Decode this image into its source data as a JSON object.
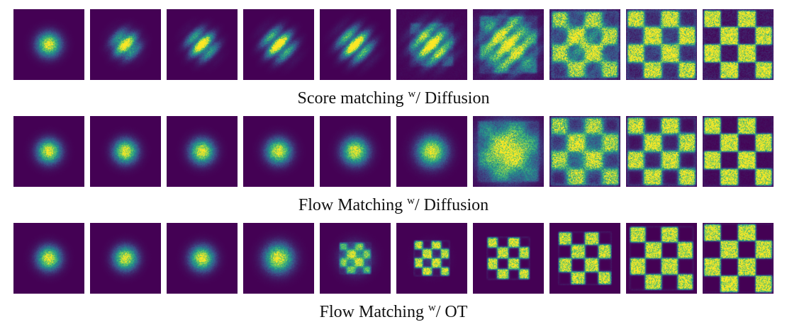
{
  "figure": {
    "background": "#ffffff",
    "panel_background": "#440154",
    "stripe_frequency": 6,
    "colormap": {
      "name": "viridis",
      "stops": [
        {
          "t": 0.0,
          "color": "#440154"
        },
        {
          "t": 0.25,
          "color": "#3b528b"
        },
        {
          "t": 0.5,
          "color": "#21918c"
        },
        {
          "t": 0.75,
          "color": "#5ec962"
        },
        {
          "t": 1.0,
          "color": "#fde725"
        }
      ]
    },
    "rows": [
      {
        "id": "score-matching-diffusion",
        "caption": {
          "prefix": "Score matching ",
          "sup": "w",
          "suffix": "/ Diffusion"
        },
        "panels": [
          {
            "blob": 1,
            "sigma": 0.42,
            "stripe": 0,
            "checker": 0,
            "extent": 2,
            "soft": 0.3,
            "noise": 0.25,
            "floor": 0,
            "seed": 101
          },
          {
            "blob": 1,
            "sigma": 0.45,
            "stripe": 0.3,
            "checker": 0,
            "extent": 2,
            "soft": 0.3,
            "noise": 0.3,
            "floor": 0,
            "seed": 102
          },
          {
            "blob": 1,
            "sigma": 0.47,
            "stripe": 0.5,
            "checker": 0,
            "extent": 2,
            "soft": 0.3,
            "noise": 0.3,
            "floor": 0,
            "seed": 103
          },
          {
            "blob": 1,
            "sigma": 0.5,
            "stripe": 0.55,
            "checker": 0,
            "extent": 2,
            "soft": 0.3,
            "noise": 0.32,
            "floor": 0,
            "seed": 104
          },
          {
            "blob": 1,
            "sigma": 0.53,
            "stripe": 0.6,
            "checker": 0,
            "extent": 2,
            "soft": 0.3,
            "noise": 0.32,
            "floor": 0,
            "seed": 105
          },
          {
            "blob": 0.95,
            "sigma": 0.62,
            "stripe": 0.6,
            "checker": 0.18,
            "extent": 1.3,
            "soft": 0.7,
            "noise": 0.35,
            "floor": 0.02,
            "seed": 106
          },
          {
            "blob": 0.8,
            "sigma": 0.85,
            "stripe": 0.5,
            "checker": 0.35,
            "extent": 1.7,
            "soft": 0.6,
            "noise": 0.4,
            "floor": 0.05,
            "seed": 107
          },
          {
            "blob": 0.35,
            "sigma": 1.05,
            "stripe": 0.35,
            "checker": 0.75,
            "extent": 1.95,
            "soft": 0.45,
            "noise": 0.5,
            "floor": 0.12,
            "seed": 108
          },
          {
            "blob": 0.12,
            "sigma": 1.15,
            "stripe": 0.2,
            "checker": 0.92,
            "extent": 2,
            "soft": 0.3,
            "noise": 0.5,
            "floor": 0.12,
            "seed": 109
          },
          {
            "blob": 0,
            "sigma": 1,
            "stripe": 0,
            "checker": 0.95,
            "extent": 2,
            "soft": 0.16,
            "noise": 0.45,
            "floor": 0.1,
            "seed": 110
          }
        ]
      },
      {
        "id": "flow-matching-diffusion",
        "caption": {
          "prefix": "Flow Matching ",
          "sup": "w",
          "suffix": "/ Diffusion"
        },
        "panels": [
          {
            "blob": 1,
            "sigma": 0.42,
            "stripe": 0,
            "checker": 0,
            "extent": 2,
            "soft": 0.3,
            "noise": 0.25,
            "floor": 0,
            "seed": 201
          },
          {
            "blob": 1,
            "sigma": 0.42,
            "stripe": 0,
            "checker": 0,
            "extent": 2,
            "soft": 0.3,
            "noise": 0.25,
            "floor": 0,
            "seed": 202
          },
          {
            "blob": 1,
            "sigma": 0.43,
            "stripe": 0,
            "checker": 0,
            "extent": 2,
            "soft": 0.3,
            "noise": 0.25,
            "floor": 0,
            "seed": 203
          },
          {
            "blob": 1,
            "sigma": 0.44,
            "stripe": 0,
            "checker": 0,
            "extent": 2,
            "soft": 0.3,
            "noise": 0.25,
            "floor": 0,
            "seed": 204
          },
          {
            "blob": 1,
            "sigma": 0.46,
            "stripe": 0,
            "checker": 0,
            "extent": 2,
            "soft": 0.3,
            "noise": 0.26,
            "floor": 0,
            "seed": 205
          },
          {
            "blob": 1,
            "sigma": 0.52,
            "stripe": 0,
            "checker": 0,
            "extent": 2,
            "soft": 0.3,
            "noise": 0.28,
            "floor": 0,
            "seed": 206
          },
          {
            "blob": 0.9,
            "sigma": 0.95,
            "stripe": 0,
            "checker": 0.3,
            "extent": 1.8,
            "soft": 0.8,
            "noise": 0.4,
            "floor": 0.03,
            "seed": 207
          },
          {
            "blob": 0.3,
            "sigma": 1.05,
            "stripe": 0,
            "checker": 0.8,
            "extent": 2,
            "soft": 0.5,
            "noise": 0.45,
            "floor": 0.05,
            "seed": 208
          },
          {
            "blob": 0.08,
            "sigma": 1,
            "stripe": 0,
            "checker": 0.95,
            "extent": 2,
            "soft": 0.32,
            "noise": 0.45,
            "floor": 0.03,
            "seed": 209
          },
          {
            "blob": 0,
            "sigma": 1,
            "stripe": 0,
            "checker": 0.95,
            "extent": 2,
            "soft": 0.16,
            "noise": 0.4,
            "floor": 0.04,
            "seed": 210
          }
        ]
      },
      {
        "id": "flow-matching-ot",
        "caption": {
          "prefix": "Flow Matching ",
          "sup": "w",
          "suffix": "/ OT"
        },
        "panels": [
          {
            "blob": 1,
            "sigma": 0.42,
            "stripe": 0,
            "checker": 0,
            "extent": 2,
            "soft": 0.3,
            "noise": 0.25,
            "floor": 0,
            "seed": 301
          },
          {
            "blob": 1,
            "sigma": 0.42,
            "stripe": 0,
            "checker": 0,
            "extent": 2,
            "soft": 0.3,
            "noise": 0.25,
            "floor": 0,
            "seed": 302
          },
          {
            "blob": 1,
            "sigma": 0.43,
            "stripe": 0,
            "checker": 0,
            "extent": 2,
            "soft": 0.3,
            "noise": 0.25,
            "floor": 0,
            "seed": 303
          },
          {
            "blob": 1,
            "sigma": 0.5,
            "stripe": 0,
            "checker": 0,
            "extent": 2,
            "soft": 0.3,
            "noise": 0.27,
            "floor": 0,
            "seed": 304
          },
          {
            "blob": 0.55,
            "sigma": 0.5,
            "stripe": 0,
            "checker": 0.6,
            "extent": 0.95,
            "soft": 0.5,
            "noise": 0.3,
            "floor": 0,
            "seed": 305
          },
          {
            "blob": 0.12,
            "sigma": 0.5,
            "stripe": 0,
            "checker": 0.95,
            "extent": 1.05,
            "soft": 0.33,
            "noise": 0.35,
            "floor": 0,
            "seed": 306
          },
          {
            "blob": 0,
            "sigma": 1,
            "stripe": 0,
            "checker": 0.95,
            "extent": 1.25,
            "soft": 0.28,
            "noise": 0.35,
            "floor": 0,
            "seed": 307
          },
          {
            "blob": 0,
            "sigma": 1,
            "stripe": 0,
            "checker": 0.95,
            "extent": 1.55,
            "soft": 0.22,
            "noise": 0.4,
            "floor": 0,
            "seed": 308
          },
          {
            "blob": 0,
            "sigma": 1,
            "stripe": 0,
            "checker": 0.95,
            "extent": 1.85,
            "soft": 0.18,
            "noise": 0.4,
            "floor": 0,
            "seed": 309
          },
          {
            "blob": 0,
            "sigma": 1,
            "stripe": 0,
            "checker": 0.95,
            "extent": 2,
            "soft": 0.14,
            "noise": 0.4,
            "floor": 0,
            "seed": 310
          }
        ]
      }
    ]
  }
}
